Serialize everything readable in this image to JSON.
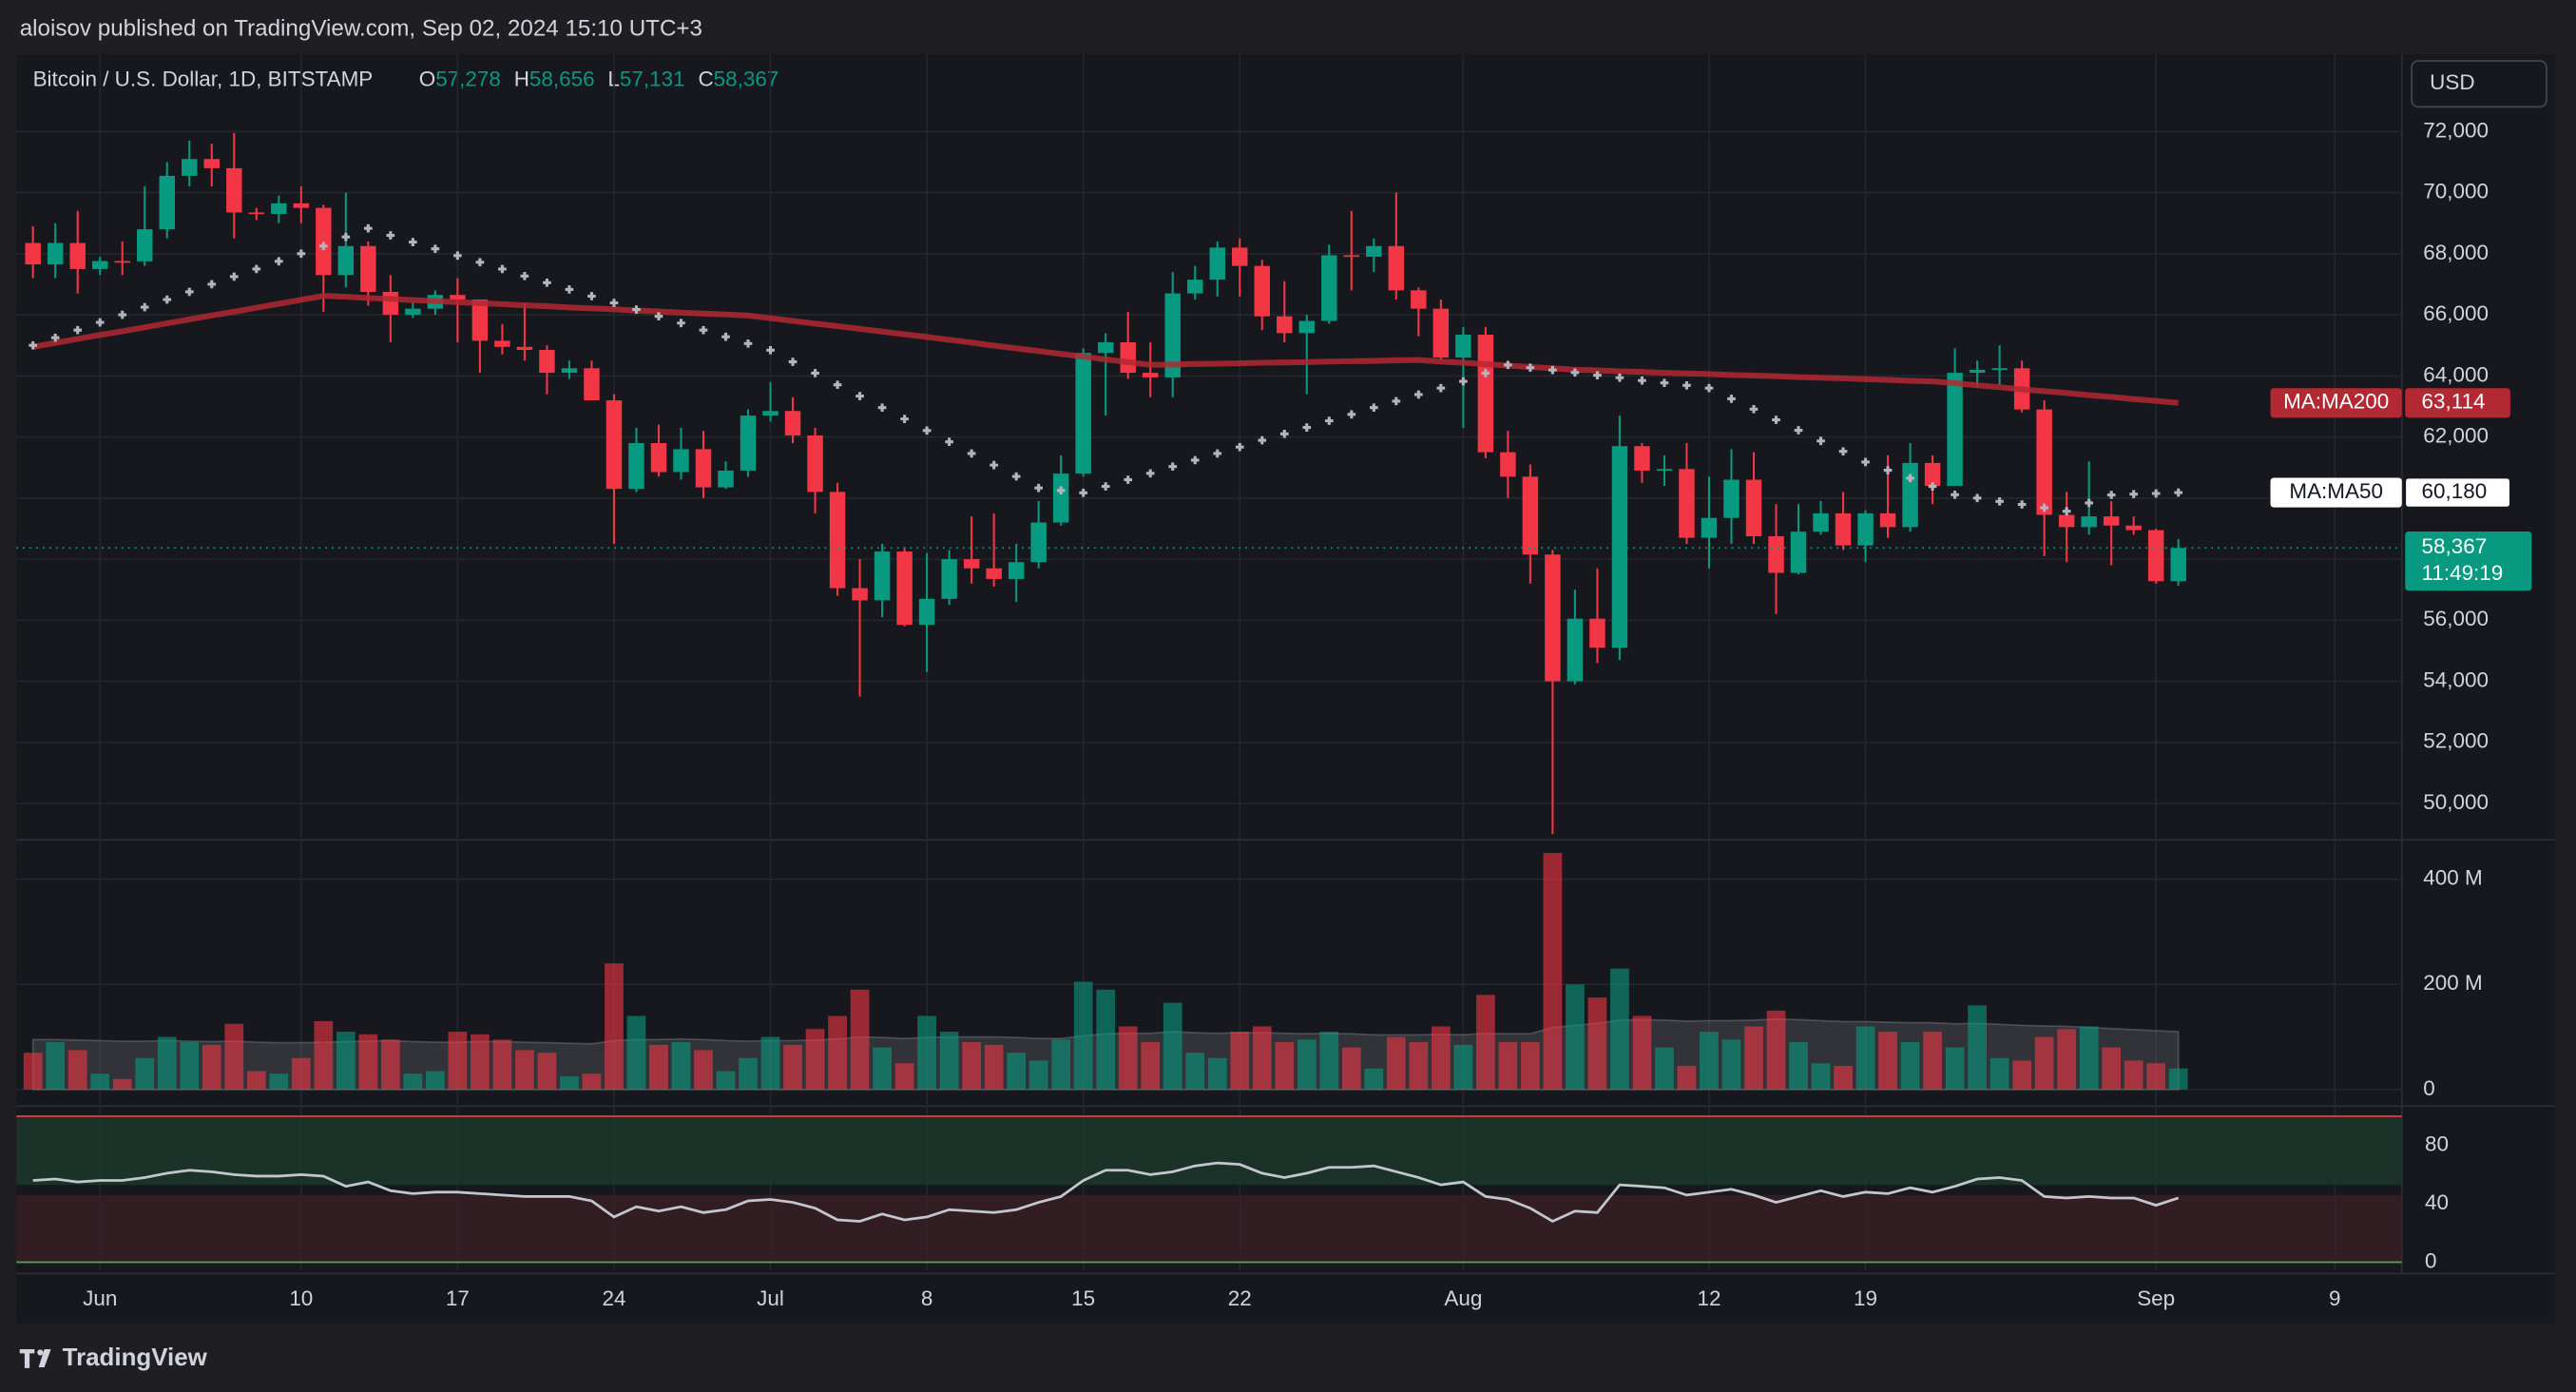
{
  "header": {
    "published": "aloisov published on TradingView.com, Sep 02, 2024 15:10 UTC+3"
  },
  "chart_data": {
    "type": "candlestick",
    "title": "Bitcoin / U.S. Dollar, 1D, BITSTAMP",
    "ohlc_legend": [
      {
        "label": "O",
        "value": "57,278"
      },
      {
        "label": "H",
        "value": "58,656"
      },
      {
        "label": "L",
        "value": "57,131"
      },
      {
        "label": "C",
        "value": "58,367"
      }
    ],
    "currency": "USD",
    "xlim": [
      -0.74,
      106
    ],
    "xticks": [
      {
        "value": 3,
        "label": "Jun"
      },
      {
        "value": 12,
        "label": "10"
      },
      {
        "value": 19,
        "label": "17"
      },
      {
        "value": 26,
        "label": "24"
      },
      {
        "value": 33,
        "label": "Jul"
      },
      {
        "value": 40,
        "label": "8"
      },
      {
        "value": 47,
        "label": "15"
      },
      {
        "value": 54,
        "label": "22"
      },
      {
        "value": 64,
        "label": "Aug"
      },
      {
        "value": 75,
        "label": "12"
      },
      {
        "value": 82,
        "label": "19"
      },
      {
        "value": 95,
        "label": "Sep"
      },
      {
        "value": 103,
        "label": "9"
      }
    ],
    "ylim": [
      48812,
      74529
    ],
    "yticks": [
      {
        "value": 50000,
        "label": "50,000"
      },
      {
        "value": 52000,
        "label": "52,000"
      },
      {
        "value": 54000,
        "label": "54,000"
      },
      {
        "value": 56000,
        "label": "56,000"
      },
      {
        "value": 58000,
        "label": "58,000"
      },
      {
        "value": 60000,
        "label": "60,000"
      },
      {
        "value": 62000,
        "label": "62,000"
      },
      {
        "value": 64000,
        "label": "64,000"
      },
      {
        "value": 66000,
        "label": "66,000"
      },
      {
        "value": 68000,
        "label": "68,000"
      },
      {
        "value": 70000,
        "label": "70,000"
      },
      {
        "value": 72000,
        "label": "72,000"
      }
    ],
    "grid": true,
    "up_color": "#089981",
    "down_color": "#f23645",
    "open": [
      68350,
      67650,
      68350,
      67500,
      67760,
      67750,
      68800,
      70550,
      71100,
      70800,
      69350,
      69300,
      69650,
      69500,
      67300,
      68250,
      66750,
      66000,
      66200,
      66650,
      66500,
      65150,
      64950,
      64850,
      64100,
      64250,
      63200,
      60300,
      61800,
      60850,
      61600,
      60350,
      60900,
      62700,
      62850,
      62050,
      60200,
      57050,
      56650,
      58250,
      55850,
      56700,
      58000,
      57700,
      57350,
      57900,
      59200,
      60800,
      64750,
      65100,
      64100,
      63950,
      66700,
      67150,
      68200,
      67600,
      65950,
      65400,
      65800,
      67950,
      67900,
      68250,
      66800,
      66200,
      64600,
      65350,
      61500,
      60700,
      58150,
      54000,
      56050,
      55100,
      61700,
      60900,
      60950,
      58700,
      59350,
      60600,
      58750,
      57550,
      58900,
      59500,
      58450,
      59500,
      59050,
      61150,
      60400,
      64100,
      64200,
      64250,
      62900,
      59450,
      59050,
      59400,
      59100,
      58950,
      57278
    ],
    "high": [
      68900,
      69000,
      69400,
      67900,
      68400,
      70200,
      71000,
      71700,
      71600,
      71950,
      69500,
      69900,
      70200,
      69600,
      70000,
      68400,
      67300,
      66450,
      66800,
      67200,
      66500,
      65700,
      66400,
      65000,
      64500,
      64500,
      63400,
      62300,
      62400,
      62300,
      62200,
      61200,
      62900,
      63800,
      63300,
      62300,
      60500,
      58000,
      58500,
      58400,
      58200,
      58300,
      59400,
      59500,
      58500,
      59900,
      61400,
      64900,
      65400,
      66100,
      65100,
      67400,
      67600,
      68400,
      68500,
      67800,
      67100,
      66000,
      68300,
      69400,
      68500,
      70000,
      66900,
      66500,
      65600,
      65600,
      62200,
      61100,
      58300,
      57000,
      57700,
      62700,
      61800,
      61400,
      61800,
      60700,
      61600,
      61500,
      59800,
      59800,
      59900,
      60200,
      59600,
      61400,
      61800,
      61400,
      64900,
      64500,
      65000,
      64500,
      63200,
      60200,
      61200,
      59900,
      59400,
      59000,
      58656
    ],
    "low": [
      67200,
      67200,
      66700,
      67300,
      67300,
      67600,
      68500,
      70200,
      70200,
      68500,
      69100,
      69000,
      69000,
      66100,
      66900,
      66300,
      65100,
      65900,
      66000,
      65100,
      64100,
      64700,
      64500,
      63400,
      63900,
      63200,
      58500,
      60200,
      60700,
      60600,
      60000,
      60300,
      60700,
      62500,
      61800,
      59500,
      56800,
      53500,
      56100,
      55800,
      54300,
      56500,
      57200,
      57100,
      56600,
      57700,
      59100,
      60700,
      62700,
      63900,
      63300,
      63300,
      66500,
      66600,
      66600,
      65500,
      65100,
      63400,
      65700,
      66800,
      67400,
      66500,
      65300,
      64500,
      62300,
      61300,
      60000,
      57200,
      49000,
      53900,
      54600,
      54700,
      60500,
      60400,
      58500,
      57700,
      58500,
      58500,
      56200,
      57500,
      58800,
      58300,
      57900,
      58700,
      58900,
      59800,
      60400,
      63600,
      63700,
      62800,
      58100,
      57900,
      58800,
      57800,
      58800,
      57200,
      57131
    ],
    "close": [
      67650,
      68350,
      67500,
      67760,
      67750,
      68800,
      70550,
      71100,
      70800,
      69350,
      69300,
      69650,
      69500,
      67300,
      68250,
      66750,
      66000,
      66200,
      66650,
      66500,
      65150,
      64950,
      64850,
      64100,
      64250,
      63200,
      60300,
      61800,
      60850,
      61600,
      60350,
      60900,
      62700,
      62850,
      62050,
      60200,
      57050,
      56650,
      58250,
      55850,
      56700,
      58000,
      57700,
      57350,
      57900,
      59200,
      60800,
      64750,
      65100,
      64100,
      63950,
      66700,
      67150,
      68200,
      67600,
      65950,
      65400,
      65800,
      67950,
      67900,
      68250,
      66800,
      66200,
      64600,
      65350,
      61500,
      60700,
      58150,
      54000,
      56050,
      55100,
      61700,
      60900,
      60950,
      58700,
      59350,
      60600,
      58750,
      57550,
      58900,
      59500,
      58450,
      59500,
      59050,
      61150,
      60400,
      64100,
      64200,
      64250,
      62900,
      59450,
      59050,
      59400,
      59100,
      58950,
      57278,
      58367
    ],
    "last_price": {
      "label": "58,367",
      "countdown": "11:49:19"
    },
    "series": [
      {
        "name": "MA:MA200",
        "color": "#b22833",
        "style": "line",
        "last_label": "63,114",
        "values": [
          64950,
          65080,
          65210,
          65340,
          65460,
          65590,
          65720,
          65850,
          65980,
          66100,
          66230,
          66360,
          66490,
          66620,
          66590,
          66550,
          66520,
          66480,
          66450,
          66410,
          66380,
          66350,
          66310,
          66280,
          66240,
          66210,
          66180,
          66140,
          66110,
          66070,
          66040,
          66010,
          65975,
          65890,
          65800,
          65710,
          65630,
          65540,
          65450,
          65360,
          65275,
          65180,
          65090,
          64990,
          64900,
          64810,
          64720,
          64630,
          64540,
          64450,
          64360,
          64370,
          64390,
          64400,
          64410,
          64430,
          64440,
          64450,
          64470,
          64480,
          64490,
          64510,
          64520,
          64470,
          64430,
          64380,
          64340,
          64290,
          64250,
          64200,
          64180,
          64150,
          64130,
          64100,
          64080,
          64060,
          64030,
          64010,
          63990,
          63960,
          63940,
          63920,
          63890,
          63870,
          63840,
          63820,
          63760,
          63690,
          63630,
          63560,
          63500,
          63440,
          63370,
          63310,
          63240,
          63180,
          63114
        ]
      },
      {
        "name": "MA:MA50",
        "color": "#b2b5be",
        "style": "cross",
        "last_label": "60,180",
        "values": [
          65000,
          65250,
          65500,
          65750,
          66000,
          66250,
          66500,
          66750,
          67000,
          67250,
          67500,
          67750,
          68000,
          68250,
          68550,
          68830,
          68600,
          68380,
          68160,
          67940,
          67720,
          67500,
          67270,
          67050,
          66830,
          66610,
          66390,
          66170,
          65950,
          65730,
          65500,
          65280,
          65060,
          64840,
          64460,
          64090,
          63710,
          63340,
          62960,
          62590,
          62210,
          61840,
          61460,
          61080,
          60710,
          60330,
          60250,
          60170,
          60380,
          60600,
          60810,
          61030,
          61240,
          61460,
          61670,
          61890,
          62100,
          62310,
          62530,
          62740,
          62960,
          63170,
          63390,
          63600,
          63820,
          64090,
          64360,
          64270,
          64190,
          64110,
          64020,
          63940,
          63850,
          63770,
          63690,
          63600,
          63250,
          62910,
          62560,
          62220,
          61870,
          61530,
          61180,
          60910,
          60650,
          60380,
          60110,
          60000,
          59890,
          59790,
          59680,
          59570,
          59840,
          60100,
          60130,
          60150,
          60180
        ]
      }
    ],
    "volume": {
      "ylim": [
        -22000000.0,
        475000000.0
      ],
      "yticks": [
        0,
        {
          "value": 200000000.0,
          "label": "200 M"
        },
        {
          "value": 400000000.0,
          "label": "400 M"
        }
      ],
      "values": [
        70000000.0,
        90000000.0,
        75000000.0,
        30000000.0,
        20000000.0,
        60000000.0,
        100000000.0,
        90000000.0,
        85000000.0,
        125000000.0,
        35000000.0,
        30000000.0,
        60000000.0,
        130000000.0,
        110000000.0,
        105000000.0,
        95000000.0,
        30000000.0,
        35000000.0,
        110000000.0,
        105000000.0,
        95000000.0,
        75000000.0,
        70000000.0,
        25000000.0,
        30000000.0,
        240000000.0,
        140000000.0,
        85000000.0,
        90000000.0,
        75000000.0,
        35000000.0,
        60000000.0,
        100000000.0,
        85000000.0,
        115000000.0,
        140000000.0,
        190000000.0,
        80000000.0,
        50000000.0,
        140000000.0,
        110000000.0,
        90000000.0,
        85000000.0,
        70000000.0,
        55000000.0,
        95000000.0,
        205000000.0,
        190000000.0,
        120000000.0,
        90000000.0,
        165000000.0,
        70000000.0,
        60000000.0,
        110000000.0,
        120000000.0,
        90000000.0,
        95000000.0,
        110000000.0,
        80000000.0,
        40000000.0,
        100000000.0,
        90000000.0,
        120000000.0,
        85000000.0,
        180000000.0,
        90000000.0,
        90000000.0,
        450000000.0,
        200000000.0,
        175000000.0,
        230000000.0,
        140000000.0,
        80000000.0,
        45000000.0,
        110000000.0,
        95000000.0,
        120000000.0,
        150000000.0,
        90000000.0,
        50000000.0,
        45000000.0,
        120000000.0,
        110000000.0,
        90000000.0,
        110000000.0,
        80000000.0,
        160000000.0,
        60000000.0,
        55000000.0,
        100000000.0,
        115000000.0,
        120000000.0,
        80000000.0,
        55000000.0,
        50000000.0,
        40000000.0
      ],
      "ma": [
        95000000.0,
        95000000.0,
        94000000.0,
        93000000.0,
        92000000.0,
        92000000.0,
        93000000.0,
        92000000.0,
        91000000.0,
        92000000.0,
        90000000.0,
        89000000.0,
        89000000.0,
        90000000.0,
        91000000.0,
        92000000.0,
        93000000.0,
        91000000.0,
        90000000.0,
        90000000.0,
        91000000.0,
        91000000.0,
        90000000.0,
        89000000.0,
        88000000.0,
        87000000.0,
        93000000.0,
        95000000.0,
        95000000.0,
        96000000.0,
        95000000.0,
        93000000.0,
        92000000.0,
        93000000.0,
        93000000.0,
        94000000.0,
        96000000.0,
        100000000.0,
        99000000.0,
        97000000.0,
        99000000.0,
        100000000.0,
        100000000.0,
        100000000.0,
        99000000.0,
        97000000.0,
        97000000.0,
        102000000.0,
        106000000.0,
        107000000.0,
        107000000.0,
        110000000.0,
        108000000.0,
        107000000.0,
        108000000.0,
        108000000.0,
        107000000.0,
        106000000.0,
        107000000.0,
        106000000.0,
        104000000.0,
        104000000.0,
        104000000.0,
        105000000.0,
        104000000.0,
        107000000.0,
        106000000.0,
        106000000.0,
        118000000.0,
        122000000.0,
        126000000.0,
        132000000.0,
        133000000.0,
        132000000.0,
        130000000.0,
        131000000.0,
        131000000.0,
        132000000.0,
        134000000.0,
        133000000.0,
        131000000.0,
        129000000.0,
        129000000.0,
        128000000.0,
        127000000.0,
        127000000.0,
        125000000.0,
        126000000.0,
        124000000.0,
        122000000.0,
        121000000.0,
        120000000.0,
        118000000.0,
        116000000.0,
        114000000.0,
        112000000.0,
        110000000.0
      ]
    },
    "oscillator": {
      "color": "#c3c6ce",
      "ylim": [
        -5.6,
        104.8
      ],
      "yticks": [
        80,
        40,
        0
      ],
      "hlines": [
        {
          "value": 100,
          "color": "#f23645"
        },
        {
          "value": 0,
          "color": "#4caf50"
        }
      ],
      "zones": [
        {
          "from": 53,
          "to": 100,
          "color": "#1d3a2c"
        },
        {
          "from": 0,
          "to": 46,
          "color": "#3a1f26"
        }
      ],
      "values": [
        56,
        57,
        55,
        56,
        56,
        58,
        61,
        63,
        62,
        60,
        59,
        59,
        60,
        59,
        52,
        55,
        49,
        47,
        48,
        48,
        47,
        46,
        45,
        45,
        45,
        42,
        31,
        38,
        35,
        38,
        34,
        36,
        42,
        43,
        41,
        37,
        29,
        28,
        33,
        29,
        31,
        36,
        35,
        34,
        36,
        41,
        45,
        56,
        63,
        63,
        60,
        62,
        66,
        68,
        67,
        61,
        58,
        61,
        65,
        65,
        66,
        62,
        58,
        53,
        55,
        45,
        43,
        37,
        28,
        35,
        34,
        53,
        52,
        51,
        46,
        48,
        50,
        46,
        41,
        45,
        49,
        45,
        48,
        47,
        51,
        48,
        52,
        57,
        58,
        56,
        45,
        44,
        45,
        44,
        44,
        39,
        44
      ]
    }
  },
  "footer": {
    "brand": "TradingView"
  }
}
